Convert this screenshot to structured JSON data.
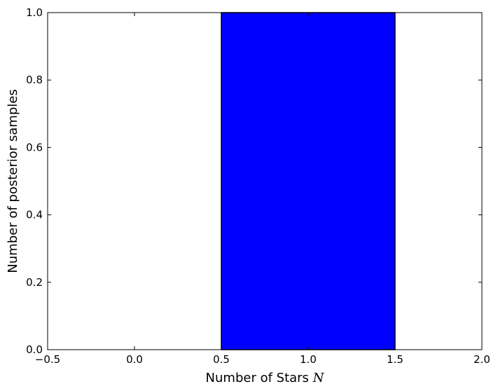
{
  "chart_data": {
    "type": "bar",
    "bars": [
      {
        "x_start": 0.5,
        "x_end": 1.5,
        "value": 1.0
      }
    ],
    "xlabel": "Number of Stars",
    "xlabel_var": "N",
    "ylabel": "Number of posterior samples",
    "xlim": [
      -0.5,
      2.0
    ],
    "ylim": [
      0.0,
      1.0
    ],
    "xticks": [
      -0.5,
      0.0,
      0.5,
      1.0,
      1.5,
      2.0
    ],
    "xtick_labels": [
      "−0.5",
      "0.0",
      "0.5",
      "1.0",
      "1.5",
      "2.0"
    ],
    "yticks": [
      0.0,
      0.2,
      0.4,
      0.6,
      0.8,
      1.0
    ],
    "ytick_labels": [
      "0.0",
      "0.2",
      "0.4",
      "0.6",
      "0.8",
      "1.0"
    ],
    "grid": false,
    "bar_color": "#0000ff",
    "edge_color": "#000000"
  }
}
